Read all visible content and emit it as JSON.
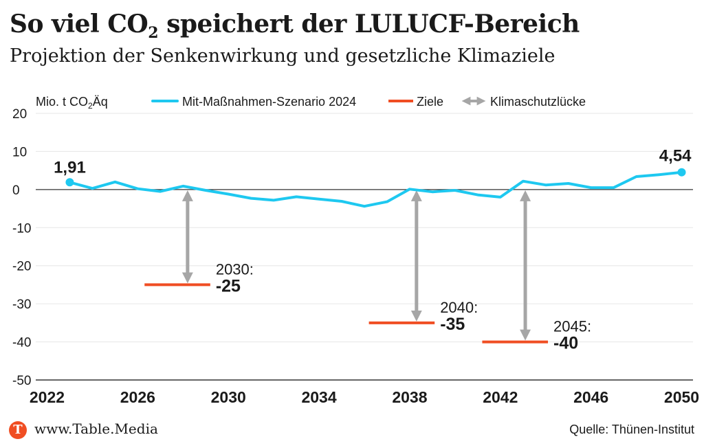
{
  "header": {
    "title_prefix": "So viel CO",
    "title_sub": "2",
    "title_suffix": " speichert der LULUCF-Bereich",
    "subtitle": "Projektion der Senkenwirkung und gesetzliche Klimaziele"
  },
  "footer": {
    "logo_letter": "T",
    "site": "www.Table.Media",
    "source": "Quelle: Thünen-Institut"
  },
  "colors": {
    "scenario": "#1ec8f0",
    "target": "#f04e23",
    "gap_arrow": "#a6a6a6",
    "grid": "#e6e6e6",
    "zero_line": "#333333",
    "text": "#1a1a1a"
  },
  "chart_data": {
    "type": "line",
    "ylabel_prefix": "Mio. t CO",
    "ylabel_sub": "2",
    "ylabel_suffix": "Äq",
    "xlim": [
      2021.5,
      2050.5
    ],
    "ylim": [
      -50,
      20
    ],
    "yticks": [
      20,
      10,
      0,
      -10,
      -20,
      -30,
      -40,
      -50
    ],
    "xticks": [
      2022,
      2026,
      2030,
      2034,
      2038,
      2042,
      2046,
      2050
    ],
    "grid": true,
    "legend": [
      {
        "label": "Mit-Maßnahmen-Szenario 2024",
        "kind": "line"
      },
      {
        "label": "Ziele",
        "kind": "target"
      },
      {
        "label": "Klimaschutzlücke",
        "kind": "arrow"
      }
    ],
    "series": [
      {
        "name": "Mit-Maßnahmen-Szenario 2024",
        "x": [
          2023,
          2024,
          2025,
          2026,
          2027,
          2028,
          2029,
          2030,
          2031,
          2032,
          2033,
          2034,
          2035,
          2036,
          2037,
          2038,
          2039,
          2040,
          2041,
          2042,
          2043,
          2044,
          2045,
          2046,
          2047,
          2048,
          2049,
          2050
        ],
        "y": [
          1.91,
          0.3,
          2.0,
          0.2,
          -0.5,
          0.9,
          -0.2,
          -1.2,
          -2.3,
          -2.8,
          -1.9,
          -2.5,
          -3.1,
          -4.4,
          -3.2,
          0.1,
          -0.6,
          -0.2,
          -1.4,
          -2.0,
          2.2,
          1.2,
          1.6,
          0.5,
          0.5,
          3.4,
          3.9,
          4.54
        ],
        "start_label": "1,91",
        "end_label": "4,54"
      }
    ],
    "targets": [
      {
        "year_label": "2030:",
        "value_label": "-25",
        "value": -25,
        "x_start": 2026.3,
        "x_end": 2029.2,
        "gap_x": 2028.2
      },
      {
        "year_label": "2040:",
        "value_label": "-35",
        "value": -35,
        "x_start": 2036.2,
        "x_end": 2039.1,
        "gap_x": 2038.3
      },
      {
        "year_label": "2045:",
        "value_label": "-40",
        "value": -40,
        "x_start": 2041.2,
        "x_end": 2044.1,
        "gap_x": 2043.1
      }
    ]
  }
}
